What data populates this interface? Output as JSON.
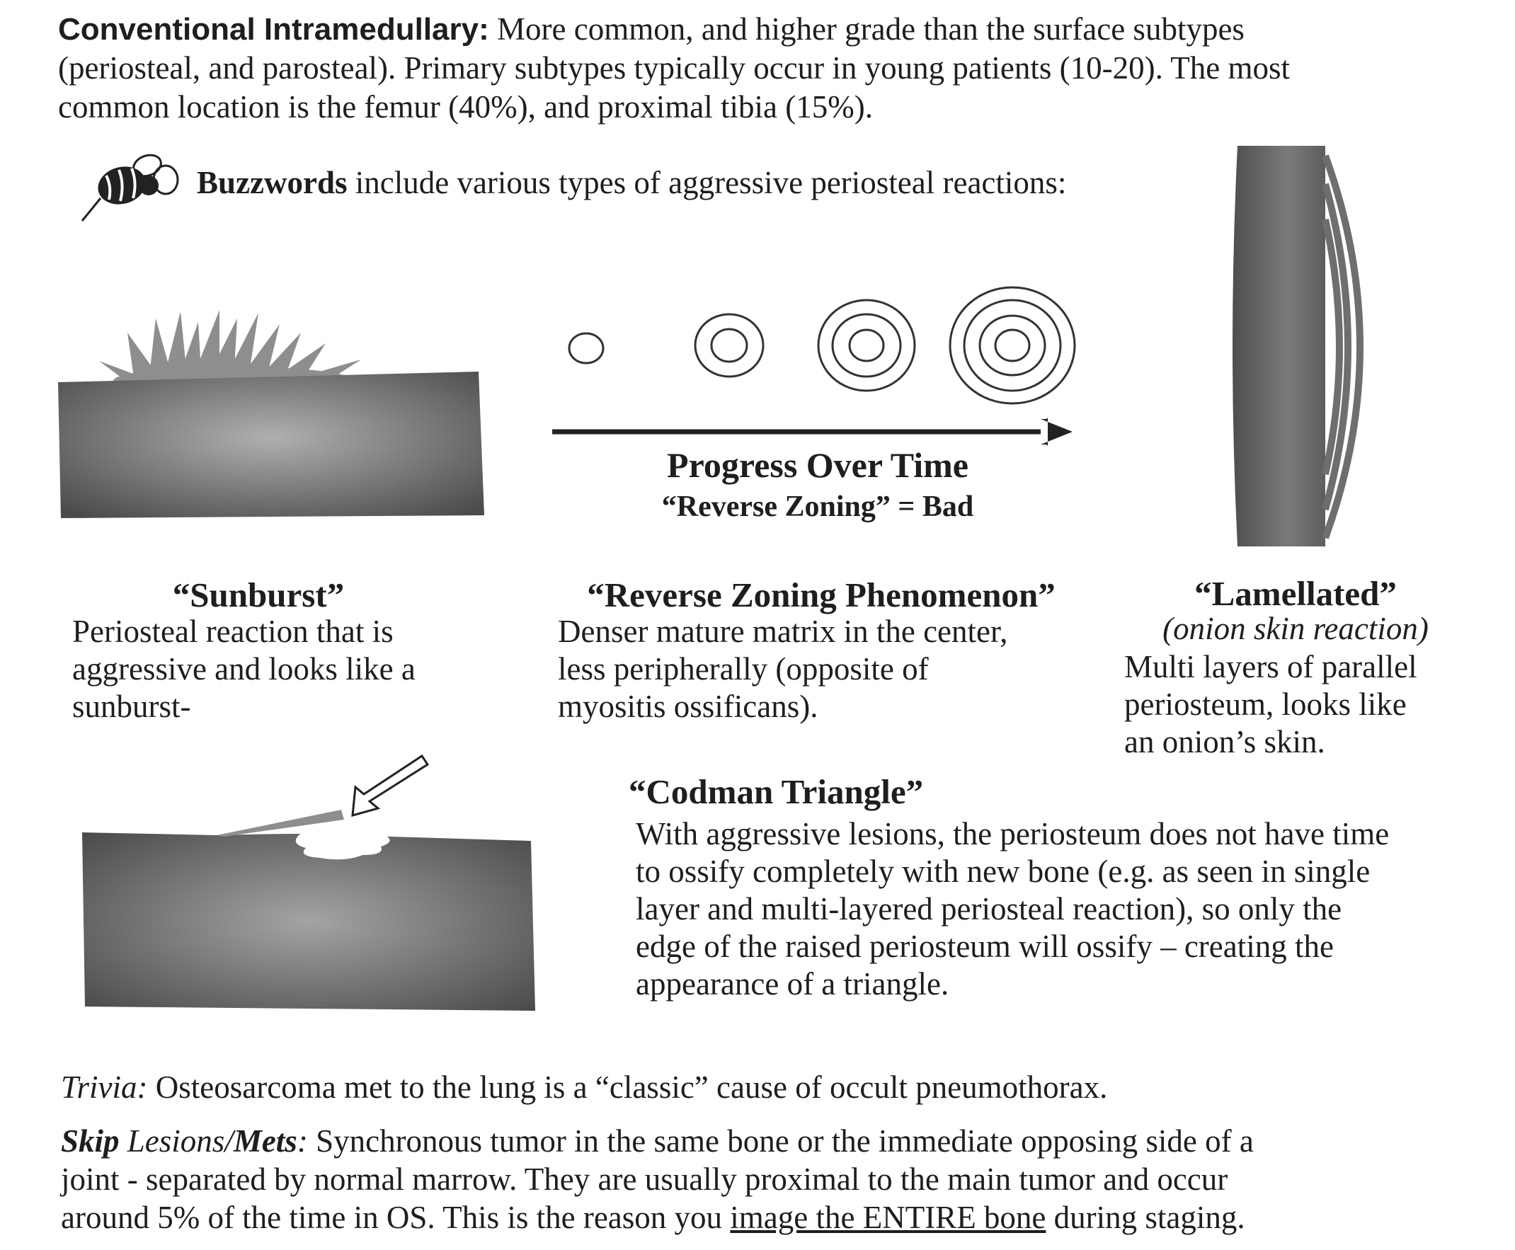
{
  "intro": {
    "heading": "Conventional Intramedullary:",
    "line1": "More common, and higher grade than the surface subtypes",
    "line2": "(periosteal, and parosteal).  Primary subtypes typically occur in young patients (10-20). The most",
    "line3": "common location is the femur (40%), and proximal tibia (15%)."
  },
  "buzzwords": {
    "bold": "Buzzwords",
    "rest": " include various types of aggressive periosteal reactions:"
  },
  "progress": {
    "title": "Progress Over Time",
    "subtitle": "“Reverse Zoning” = Bad"
  },
  "sunburst": {
    "title": "“Sunburst”",
    "lines": [
      "Periosteal reaction that is",
      "aggressive and looks like a",
      "sunburst-"
    ]
  },
  "reverse_zoning": {
    "title": "“Reverse Zoning Phenomenon”",
    "lines": [
      "Denser mature matrix in the center,",
      "less peripherally (opposite of",
      "myositis ossificans)."
    ]
  },
  "lamellated": {
    "title": "“Lamellated”",
    "subtitle": "(onion skin reaction)",
    "lines": [
      "Multi layers of parallel",
      "periosteum, looks like",
      "an onion’s skin."
    ]
  },
  "codman": {
    "title": "“Codman Triangle”",
    "lines": [
      "With aggressive lesions, the periosteum does not have time",
      "to ossify completely with new bone (e.g. as seen in single",
      "layer and multi-layered periosteal reaction), so only the",
      "edge of the raised periosteum will ossify – creating the",
      "appearance of a triangle."
    ]
  },
  "trivia": {
    "label": "Trivia:",
    "text": " Osteosarcoma met to the lung is a “classic” cause of occult pneumothorax."
  },
  "skip": {
    "label_bold": "Skip",
    "label_mid": " Lesions/",
    "label_bold2": "Mets",
    "label_end": ":",
    "line1": "  Synchronous tumor in the same bone or the immediate opposing side of a",
    "line2": "joint - separated by normal marrow.  They are usually proximal to the main tumor and occur",
    "line3_pre": "around 5% of the time in OS.  This is the reason you ",
    "line3_u": "image the ENTIRE bone",
    "line3_post": " during staging."
  },
  "icons": {
    "bee": "bee-icon",
    "arrow": "hollow-arrow-icon"
  },
  "colors": {
    "bone_dark": "#4a4a4a",
    "bone_light": "#a8a8a8",
    "reaction": "#8e8e8e",
    "text": "#1e1e1e"
  }
}
